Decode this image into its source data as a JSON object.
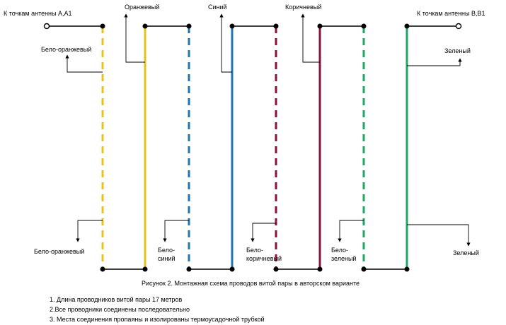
{
  "colors": {
    "orange": "#e8c21c",
    "blue": "#1f74b4",
    "brown": "#8b1239",
    "green": "#1fa565",
    "black": "#000000"
  },
  "labels": {
    "left_antenna": "К точкам антенны А,А1",
    "right_antenna": "К точкам антенны В,В1",
    "white_orange_top": "Бело-оранжевый",
    "orange_top": "Оранжевый",
    "blue_top": "Синий",
    "brown_top": "Коричневый",
    "green_top": "Зеленый",
    "white_orange_bottom": "Бело-оранжевый",
    "white_blue_line1": "Бело-",
    "white_blue_line2": "синий",
    "white_brown_line1": "Бело-",
    "white_brown_line2": "коричневый",
    "white_green_line1": "Бело-",
    "white_green_line2": "зеленый",
    "green_bottom": "Зеленый"
  },
  "caption": "Рисунок 2. Монтажная схема проводов витой пары в авторском варианте",
  "notes": [
    "1. Длина проводников витой пары 17 метров",
    "2.Все проводники соединены последовательно",
    "3. Места соединения пропаяны и изолированы термоусадочной трубкой"
  ]
}
